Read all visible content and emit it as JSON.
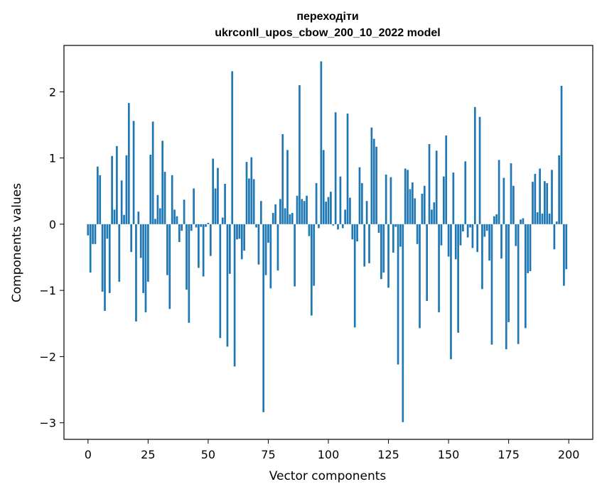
{
  "chart_data": {
    "type": "bar",
    "title_line1": "переходіти",
    "title_line2": "ukrconll_upos_cbow_200_10_2022 model",
    "xlabel": "Vector components",
    "ylabel": "Components values",
    "xlim": [
      -10,
      210
    ],
    "ylim": [
      -3.25,
      2.7
    ],
    "xticks": [
      0,
      25,
      50,
      75,
      100,
      125,
      150,
      175,
      200
    ],
    "yticks": [
      -3,
      -2,
      -1,
      0,
      1,
      2
    ],
    "ytick_labels": [
      "−3",
      "−2",
      "−1",
      "0",
      "1",
      "2"
    ],
    "bar_color": "#1f77b4",
    "values": [
      -0.17,
      -0.73,
      -0.3,
      -0.3,
      0.87,
      0.74,
      -1.02,
      -1.31,
      -0.22,
      -1.04,
      1.03,
      0.22,
      1.18,
      -0.87,
      0.66,
      0.14,
      1.04,
      1.83,
      -0.42,
      1.56,
      -1.47,
      0.19,
      -0.51,
      -1.04,
      -1.33,
      -0.87,
      1.05,
      1.55,
      0.08,
      0.44,
      0.24,
      1.26,
      0.79,
      -0.77,
      -1.28,
      0.74,
      0.22,
      0.12,
      -0.27,
      -0.1,
      0.37,
      -0.99,
      -1.49,
      -0.1,
      0.54,
      -0.05,
      -0.66,
      -0.04,
      -0.79,
      -0.04,
      0.02,
      -0.48,
      0.99,
      0.54,
      0.85,
      -1.72,
      0.1,
      0.61,
      -1.85,
      -0.75,
      2.31,
      -2.15,
      -0.23,
      -0.22,
      -0.53,
      -0.4,
      0.94,
      0.69,
      1.01,
      0.68,
      -0.05,
      -0.61,
      0.35,
      -2.84,
      -0.77,
      -0.28,
      -0.97,
      0.17,
      0.3,
      -0.7,
      0.38,
      1.36,
      0.24,
      1.12,
      0.15,
      0.17,
      -0.94,
      0.43,
      2.1,
      0.38,
      0.35,
      0.43,
      -0.18,
      -1.38,
      -0.93,
      0.62,
      -0.06,
      2.46,
      1.12,
      0.34,
      0.41,
      0.49,
      -0.02,
      1.69,
      -0.08,
      0.72,
      -0.06,
      0.22,
      1.67,
      0.4,
      -0.23,
      -1.56,
      -0.26,
      0.86,
      0.62,
      -0.64,
      0.35,
      -0.59,
      1.46,
      1.29,
      1.17,
      -0.13,
      -0.83,
      -0.73,
      0.75,
      -0.96,
      0.71,
      -0.43,
      -0.04,
      -2.12,
      -0.34,
      -2.99,
      0.84,
      0.82,
      0.53,
      0.63,
      0.39,
      -0.3,
      -1.57,
      0.46,
      0.58,
      -1.16,
      1.21,
      0.22,
      0.33,
      1.11,
      -1.33,
      -0.32,
      0.72,
      1.34,
      -0.49,
      -2.04,
      0.78,
      -0.53,
      -1.64,
      -0.32,
      -0.11,
      0.95,
      -0.2,
      -0.05,
      -0.36,
      1.77,
      -0.42,
      1.62,
      -0.98,
      -0.19,
      -0.1,
      -0.55,
      -1.82,
      0.12,
      0.15,
      0.97,
      -0.52,
      0.7,
      -1.89,
      -1.48,
      0.92,
      0.58,
      -0.33,
      -1.81,
      0.07,
      0.09,
      -1.57,
      -0.74,
      -0.71,
      0.64,
      0.76,
      0.18,
      0.84,
      0.16,
      0.65,
      0.62,
      0.16,
      0.82,
      -0.38,
      0.04,
      1.04,
      2.09,
      -0.93,
      -0.68
    ]
  }
}
